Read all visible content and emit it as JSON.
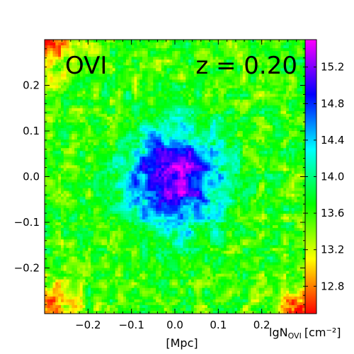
{
  "chart_data": {
    "type": "heatmap",
    "title": "",
    "annotations": {
      "ion": "OVI",
      "redshift": "z = 0.20"
    },
    "xlabel": "[Mpc]",
    "ylabel": "",
    "xlim": [
      -0.3,
      0.3
    ],
    "ylim": [
      -0.3,
      0.3
    ],
    "x_ticks": [
      -0.2,
      -0.1,
      0.0,
      0.1,
      0.2
    ],
    "x_tick_labels": [
      "−0.2",
      "−0.1",
      "0.0",
      "0.1",
      "0.2"
    ],
    "y_ticks": [
      0.2,
      0.1,
      0.0,
      -0.1,
      -0.2
    ],
    "y_tick_labels": [
      "0.2",
      "0.1",
      "0.0",
      "−0.1",
      "−0.2"
    ],
    "colorbar": {
      "label": "lgN",
      "label_subscript": "OVI",
      "label_units": "[cm⁻²]",
      "range": [
        12.5,
        15.5
      ],
      "ticks": [
        15.2,
        14.8,
        14.4,
        14.0,
        13.6,
        13.2,
        12.8
      ],
      "tick_labels": [
        "15.2",
        "14.8",
        "14.4",
        "14.0",
        "13.6",
        "13.2",
        "12.8"
      ],
      "colormap": "gist_rainbow_r",
      "colors": [
        "#ff0000",
        "#ff8000",
        "#ffff00",
        "#00ff00",
        "#00ffff",
        "#0000ff",
        "#ff00ff"
      ]
    },
    "field_description": {
      "center": [
        0.0,
        0.0
      ],
      "peak_value": 15.3,
      "core_radius_mpc": 0.05,
      "background_value": 13.6,
      "corner_value": 12.7
    }
  }
}
